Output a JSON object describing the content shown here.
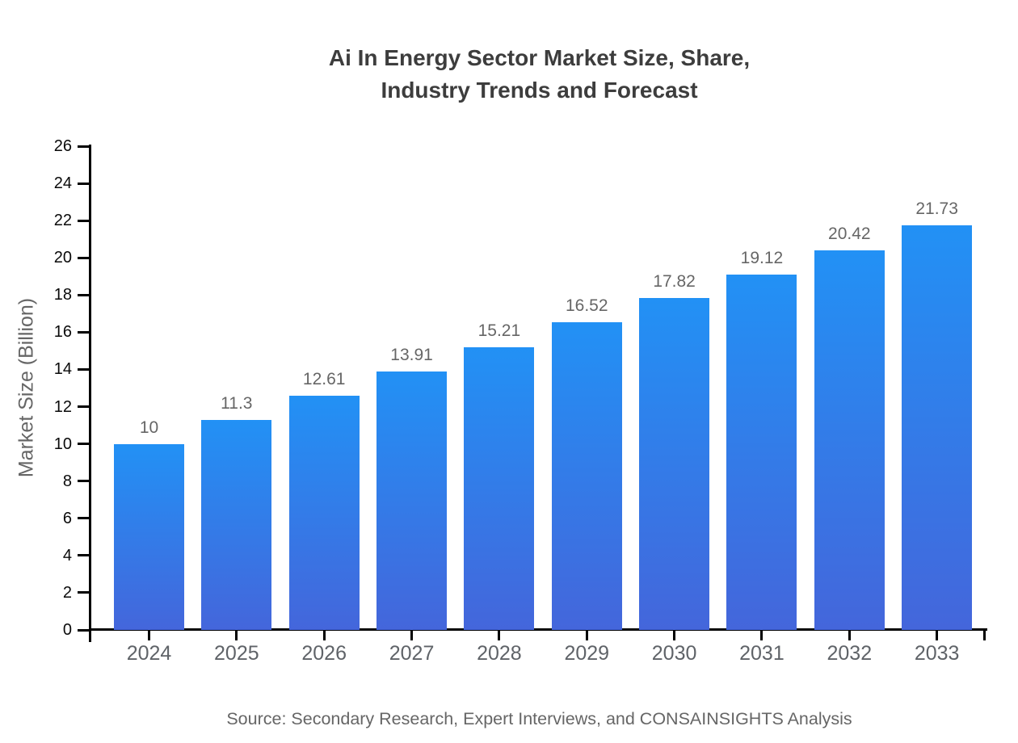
{
  "title": {
    "line1": "Ai In Energy Sector Market Size, Share,",
    "line2": "Industry Trends and Forecast"
  },
  "source": "Source: Secondary Research, Expert Interviews, and CONSAINSIGHTS Analysis",
  "chart_data": {
    "type": "bar",
    "title": "Ai In Energy Sector Market Size, Share, Industry Trends and Forecast",
    "categories": [
      "2024",
      "2025",
      "2026",
      "2027",
      "2028",
      "2029",
      "2030",
      "2031",
      "2032",
      "2033"
    ],
    "values": [
      10,
      11.3,
      12.61,
      13.91,
      15.21,
      16.52,
      17.82,
      19.12,
      20.42,
      21.73
    ],
    "value_labels": [
      "10",
      "11.3",
      "12.61",
      "13.91",
      "15.21",
      "16.52",
      "17.82",
      "19.12",
      "20.42",
      "21.73"
    ],
    "xlabel": "",
    "ylabel": "Market Size (Billion)",
    "ylim": [
      0,
      26
    ],
    "y_ticks": [
      0,
      2,
      4,
      6,
      8,
      10,
      12,
      14,
      16,
      18,
      20,
      22,
      24,
      26
    ],
    "grid": false,
    "legend_position": "none",
    "colors": {
      "bar_gradient_top": "#2291F5",
      "bar_gradient_bottom": "#4466DB",
      "axis": "#000000",
      "y_tick_label": "#0a0a0a",
      "category_label": "#5f6368",
      "value_label": "#666666",
      "title": "#3d3d3d",
      "source": "#666666"
    }
  }
}
